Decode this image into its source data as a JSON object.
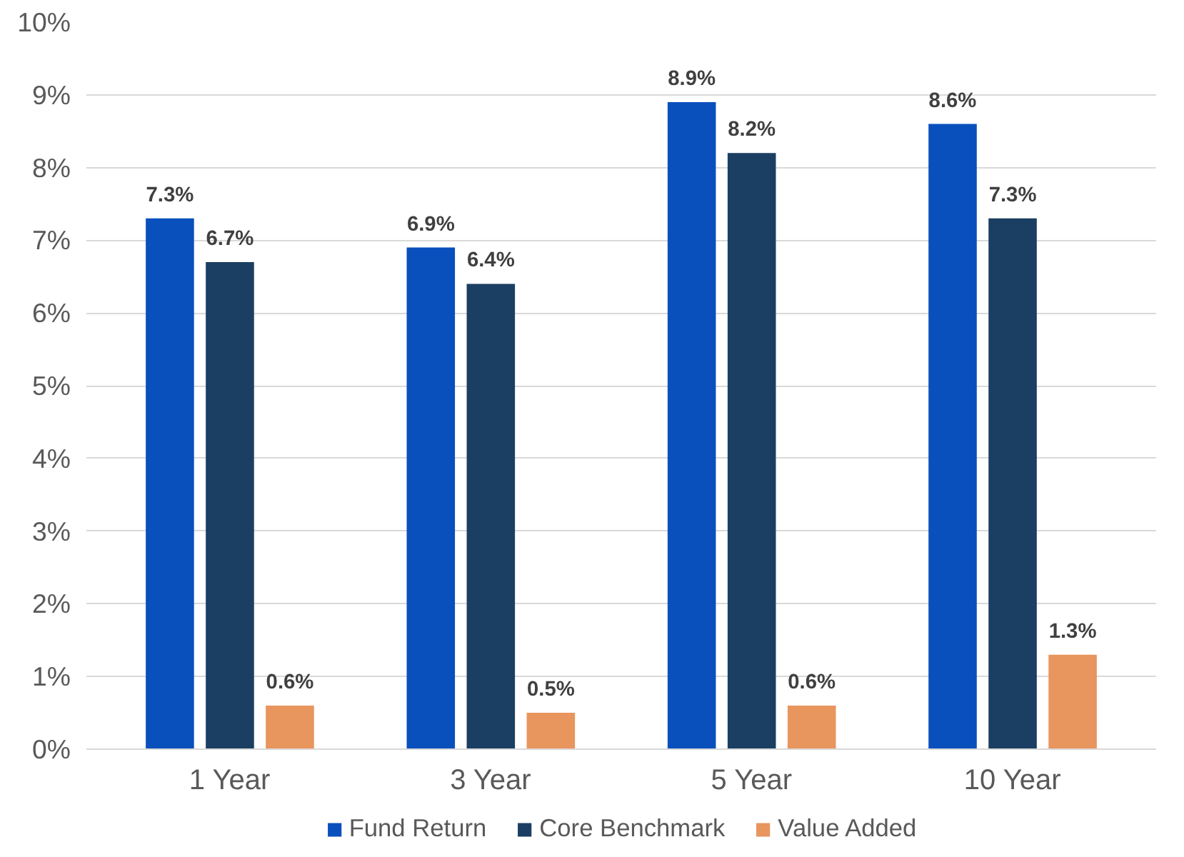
{
  "chart_data": {
    "type": "bar",
    "categories": [
      "1 Year",
      "3 Year",
      "5 Year",
      "10 Year"
    ],
    "series": [
      {
        "name": "Fund Return",
        "color": "#0a50bd",
        "values": [
          7.3,
          6.9,
          8.9,
          8.6
        ],
        "value_labels": [
          "7.3%",
          "6.9%",
          "8.9%",
          "8.6%"
        ]
      },
      {
        "name": "Core Benchmark",
        "color": "#1b3f62",
        "values": [
          6.7,
          6.4,
          8.2,
          7.3
        ],
        "value_labels": [
          "6.7%",
          "6.4%",
          "8.2%",
          "7.3%"
        ]
      },
      {
        "name": "Value Added",
        "color": "#e8955e",
        "values": [
          0.6,
          0.5,
          0.6,
          1.3
        ],
        "value_labels": [
          "0.6%",
          "0.5%",
          "0.6%",
          "1.3%"
        ]
      }
    ],
    "ylim": [
      0,
      10
    ],
    "yticks": [
      {
        "value": 0,
        "label": "0%"
      },
      {
        "value": 1,
        "label": "1%"
      },
      {
        "value": 2,
        "label": "2%"
      },
      {
        "value": 3,
        "label": "3%"
      },
      {
        "value": 4,
        "label": "4%"
      },
      {
        "value": 5,
        "label": "5%"
      },
      {
        "value": 6,
        "label": "6%"
      },
      {
        "value": 7,
        "label": "7%"
      },
      {
        "value": 8,
        "label": "8%"
      },
      {
        "value": 9,
        "label": "9%"
      },
      {
        "value": 10,
        "label": "10%"
      }
    ],
    "grid": "y",
    "legend": "bottom"
  }
}
